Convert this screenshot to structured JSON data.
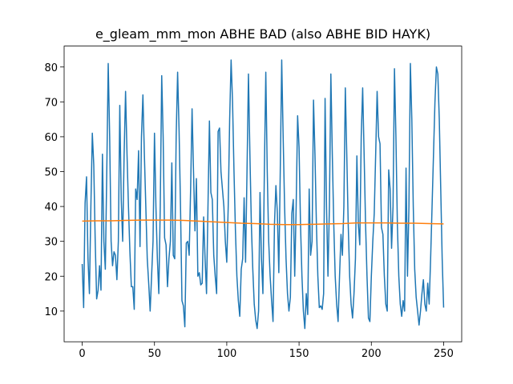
{
  "chart_data": {
    "type": "line",
    "title": "e_gleam_mm_mon ABHE BAD (also ABHE BID HAYK)",
    "xlim": [
      -12.5,
      262.5
    ],
    "xticks": [
      0,
      50,
      100,
      150,
      200,
      250
    ],
    "ylim": [
      1.2,
      86.0
    ],
    "yticks": [
      10,
      20,
      30,
      40,
      50,
      60,
      70,
      80
    ],
    "series": [
      {
        "color": "#1f77b4",
        "x": [
          0,
          1,
          2,
          3,
          4,
          5,
          6,
          7,
          8,
          9,
          10,
          11,
          12,
          13,
          14,
          15,
          16,
          17,
          18,
          19,
          20,
          21,
          22,
          23,
          24,
          25,
          26,
          27,
          28,
          29,
          30,
          31,
          32,
          33,
          34,
          35,
          36,
          37,
          38,
          39,
          40,
          41,
          42,
          43,
          44,
          45,
          46,
          47,
          48,
          49,
          50,
          51,
          52,
          53,
          54,
          55,
          56,
          57,
          58,
          59,
          60,
          61,
          62,
          63,
          64,
          65,
          66,
          67,
          68,
          69,
          70,
          71,
          72,
          73,
          74,
          75,
          76,
          77,
          78,
          79,
          80,
          81,
          82,
          83,
          84,
          85,
          86,
          87,
          88,
          89,
          90,
          91,
          92,
          93,
          94,
          95,
          96,
          97,
          98,
          99,
          100,
          101,
          102,
          103,
          104,
          105,
          106,
          107,
          108,
          109,
          110,
          111,
          112,
          113,
          114,
          115,
          116,
          117,
          118,
          119,
          120,
          121,
          122,
          123,
          124,
          125,
          126,
          127,
          128,
          129,
          130,
          131,
          132,
          133,
          134,
          135,
          136,
          137,
          138,
          139,
          140,
          141,
          142,
          143,
          144,
          145,
          146,
          147,
          148,
          149,
          150,
          151,
          152,
          153,
          154,
          155,
          156,
          157,
          158,
          159,
          160,
          161,
          162,
          163,
          164,
          165,
          166,
          167,
          168,
          169,
          170,
          171,
          172,
          173,
          174,
          175,
          176,
          177,
          178,
          179,
          180,
          181,
          182,
          183,
          184,
          185,
          186,
          187,
          188,
          189,
          190,
          191,
          192,
          193,
          194,
          195,
          196,
          197,
          198,
          199,
          200,
          201,
          202,
          203,
          204,
          205,
          206,
          207,
          208,
          209,
          210,
          211,
          212,
          213,
          214,
          215,
          216,
          217,
          218,
          219,
          220,
          221,
          222,
          223,
          224,
          225,
          226,
          227,
          228,
          229,
          230,
          231,
          232,
          233,
          234,
          235,
          236,
          237,
          238,
          239,
          240,
          241,
          242,
          243,
          244,
          245,
          246,
          247,
          248,
          249,
          250
        ],
        "values": [
          23.5,
          11,
          41,
          48.5,
          25,
          15,
          40,
          61,
          52,
          30,
          13.5,
          16,
          23,
          16,
          55,
          30,
          22,
          50,
          81,
          60,
          30,
          23,
          27,
          26,
          19,
          30,
          69,
          42,
          30,
          55,
          73,
          55,
          40,
          27,
          17,
          17,
          10.5,
          45,
          42,
          56,
          28.5,
          60,
          72,
          55,
          40,
          25,
          18,
          10,
          20,
          30,
          61,
          40,
          25,
          15,
          40,
          77.5,
          60,
          31,
          29,
          17,
          25,
          30,
          52.5,
          26,
          25,
          60,
          78.5,
          62,
          40,
          13,
          11.5,
          5.5,
          29.5,
          30,
          26,
          45,
          68,
          50,
          33,
          48,
          20,
          21,
          17.5,
          18,
          37,
          25,
          15,
          40,
          64.5,
          44,
          42,
          26,
          20,
          15,
          61.5,
          62.5,
          50,
          45,
          40,
          30,
          24,
          40,
          65,
          82,
          70,
          50,
          33,
          20,
          13,
          8.5,
          22,
          25,
          42.5,
          24,
          50,
          78,
          55,
          35,
          22,
          12,
          7.5,
          5,
          10,
          44,
          25,
          15,
          50,
          78.5,
          50,
          30,
          20,
          13,
          7,
          35,
          46,
          38,
          21,
          50,
          82,
          60,
          40,
          25,
          15,
          10,
          14,
          38,
          42,
          20,
          40,
          66,
          57,
          35,
          20,
          10,
          5,
          15,
          9,
          45,
          26,
          30,
          70.5,
          55,
          35,
          20,
          11,
          11.5,
          10.5,
          15,
          71,
          40,
          20,
          40,
          78,
          55,
          35,
          20,
          12,
          7,
          20,
          32,
          26,
          40,
          74,
          55,
          35,
          20,
          12,
          8,
          15,
          25,
          54.5,
          35,
          29,
          60,
          74,
          55,
          35,
          20,
          8,
          7,
          20,
          30,
          38,
          55,
          73,
          60,
          58,
          34,
          32,
          20,
          12,
          10,
          50.5,
          45,
          28,
          40,
          79.5,
          60,
          35,
          20,
          12,
          8.5,
          13,
          10,
          51,
          20,
          40,
          81,
          65,
          40,
          22,
          14,
          10,
          6,
          10,
          15,
          19,
          12,
          10,
          18,
          12,
          25,
          40,
          55,
          70,
          80,
          78,
          65,
          45,
          25,
          11
        ]
      },
      {
        "color": "#ff7f0e",
        "x": [
          0,
          10,
          20,
          30,
          40,
          50,
          60,
          70,
          80,
          90,
          100,
          110,
          120,
          130,
          140,
          150,
          160,
          170,
          180,
          190,
          200,
          210,
          220,
          230,
          240,
          250
        ],
        "values": [
          35.8,
          35.9,
          35.9,
          36.0,
          36.1,
          36.1,
          36.1,
          36.0,
          35.8,
          35.6,
          35.4,
          35.2,
          35.1,
          34.9,
          34.8,
          34.8,
          34.9,
          35.0,
          35.1,
          35.3,
          35.3,
          35.3,
          35.2,
          35.2,
          35.1,
          35.0
        ]
      }
    ]
  }
}
